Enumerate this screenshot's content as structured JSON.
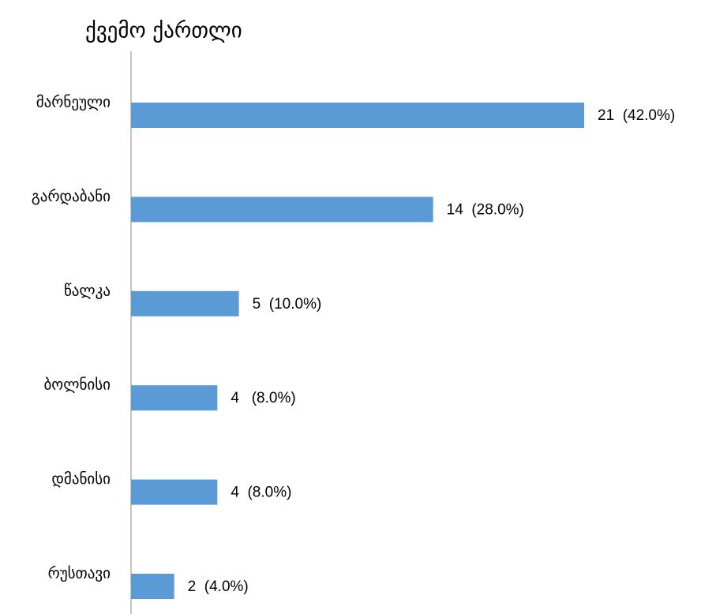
{
  "chart_data": {
    "type": "barh",
    "title": "ქვემო ქართლი",
    "categories": [
      "მარნეული",
      "გარდაბანი",
      "წალკა",
      "ბოლნისი",
      "დმანისი",
      "რუსთავი"
    ],
    "values": [
      21,
      14,
      5,
      4,
      4,
      2
    ],
    "value_labels": [
      "21  (42.0%)",
      "14  (28.0%)",
      "5  (10.0%)",
      "4   (8.0%)",
      "4  (8.0%)",
      "2  (4.0%)"
    ],
    "color": "#5b9bd5"
  }
}
